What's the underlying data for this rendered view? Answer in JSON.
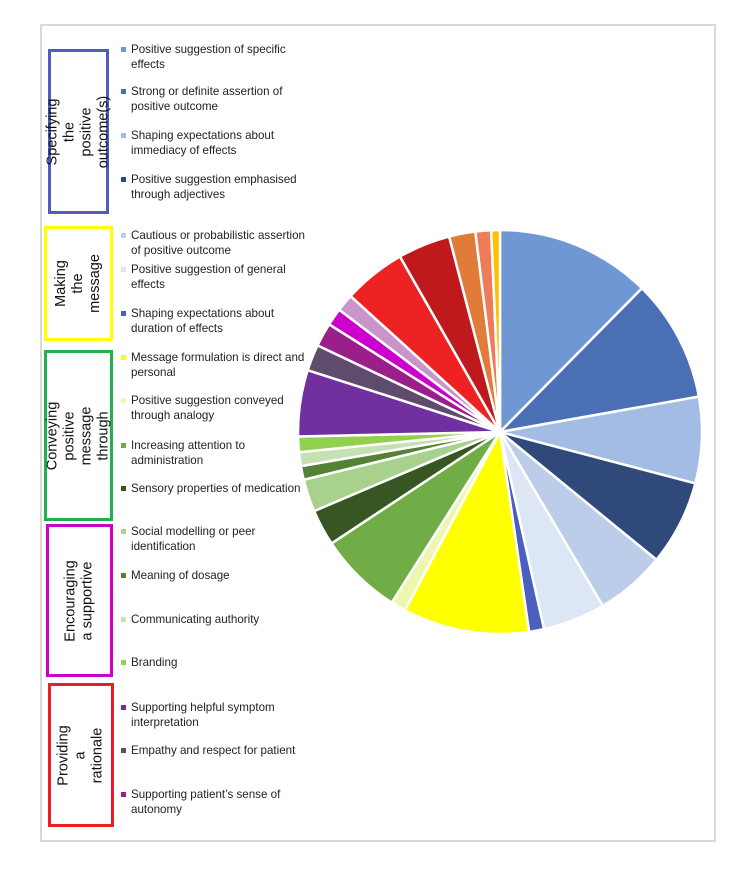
{
  "categories": [
    {
      "label": "Specifying the positive outcome(s)",
      "color": "#4f5bbf"
    },
    {
      "label": "Making the message",
      "color": "#ffff00"
    },
    {
      "label": "Conveying positive message through",
      "color": "#22b14c"
    },
    {
      "label": "Encouraging a supportive",
      "color": "#cc00cc"
    },
    {
      "label": "Providing a rationale",
      "color": "#ee1c24"
    }
  ],
  "legend": [
    {
      "label": "Positive suggestion of specific effects",
      "color": "#6f97d4"
    },
    {
      "label": "Strong or definite assertion of positive outcome",
      "color": "#4a6fb5"
    },
    {
      "label": "Shaping expectations about immediacy of effects",
      "color": "#a3bce3"
    },
    {
      "label": "Positive suggestion emphasised through adjectives",
      "color": "#2f4a7a"
    },
    {
      "label": "Cautious or probabilistic assertion of positive outcome",
      "color": "#bccde9"
    },
    {
      "label": "Positive suggestion of general effects",
      "color": "#dce6f4"
    },
    {
      "label": "Shaping expectations about duration of effects",
      "color": "#4b5fbf"
    },
    {
      "label": "Message formulation is direct and personal",
      "color": "#ffff00"
    },
    {
      "label": "Positive suggestion conveyed through analogy",
      "color": "#eef7b0"
    },
    {
      "label": "Increasing attention to administration",
      "color": "#70ad47"
    },
    {
      "label": "Sensory properties  of medication",
      "color": "#375623"
    },
    {
      "label": "Social modelling or peer identification",
      "color": "#a9d18e"
    },
    {
      "label": "Meaning of dosage",
      "color": "#548235"
    },
    {
      "label": "Communicating authority",
      "color": "#c5e0b4"
    },
    {
      "label": "Branding",
      "color": "#92d050"
    },
    {
      "label": "Supporting helpful symptom interpretation",
      "color": "#7030a0"
    },
    {
      "label": "Empathy and respect for patient",
      "color": "#5f4b6b"
    },
    {
      "label": "Supporting patient’s sense of autonomy",
      "color": "#9b1f8a"
    }
  ],
  "chart_data": {
    "type": "pie",
    "title": "",
    "start_angle_deg": 0,
    "direction": "clockwise",
    "legend_position": "left",
    "categories": [
      "Positive suggestion of specific effects",
      "Strong or definite assertion of positive outcome",
      "Shaping expectations about immediacy of effects",
      "Positive suggestion emphasised through adjectives",
      "Cautious or probabilistic assertion of positive outcome",
      "Positive suggestion of general effects",
      "Shaping expectations about duration of effects",
      "Message formulation is direct and personal",
      "Positive suggestion conveyed through analogy",
      "Increasing attention to administration",
      "Sensory properties  of medication",
      "Social modelling or peer identification",
      "Meaning of dosage",
      "Communicating authority",
      "Branding",
      "Supporting helpful symptom interpretation",
      "Empathy and respect for patient",
      "Supporting patient’s sense of autonomy",
      "",
      "",
      "",
      "",
      "",
      "",
      ""
    ],
    "values": [
      12.4,
      9.8,
      6.9,
      6.8,
      5.6,
      5.0,
      1.2,
      10.1,
      1.2,
      6.7,
      2.9,
      2.6,
      1.1,
      1.1,
      1.25,
      5.3,
      2.1,
      1.9,
      1.4,
      1.4,
      5.0,
      4.2,
      2.1,
      1.25,
      0.7
    ],
    "colors": [
      "#6f97d4",
      "#4a6fb5",
      "#a3bce3",
      "#2f4a7a",
      "#bccde9",
      "#dce6f4",
      "#4b5fbf",
      "#ffff00",
      "#eef7b0",
      "#70ad47",
      "#375623",
      "#a9d18e",
      "#548235",
      "#c5e0b4",
      "#92d050",
      "#7030a0",
      "#5f4b6b",
      "#9b1f8a",
      "#cc00cc",
      "#c994c7",
      "#ee2222",
      "#c0191b",
      "#e07b39",
      "#ee7b5a",
      "#ffc000"
    ],
    "units": "percent (estimated from slice angles)",
    "groups": [
      {
        "name": "Specifying the positive outcome(s)",
        "members": [
          0,
          1,
          2,
          3
        ]
      },
      {
        "name": "Making the message",
        "members": [
          4,
          5,
          6
        ]
      },
      {
        "name": "Conveying positive message through",
        "members": [
          7,
          8,
          9,
          10
        ]
      },
      {
        "name": "Encouraging a supportive",
        "members": [
          11,
          12,
          13,
          14
        ]
      },
      {
        "name": "Providing a rationale",
        "members": [
          15,
          16,
          17
        ]
      }
    ]
  }
}
